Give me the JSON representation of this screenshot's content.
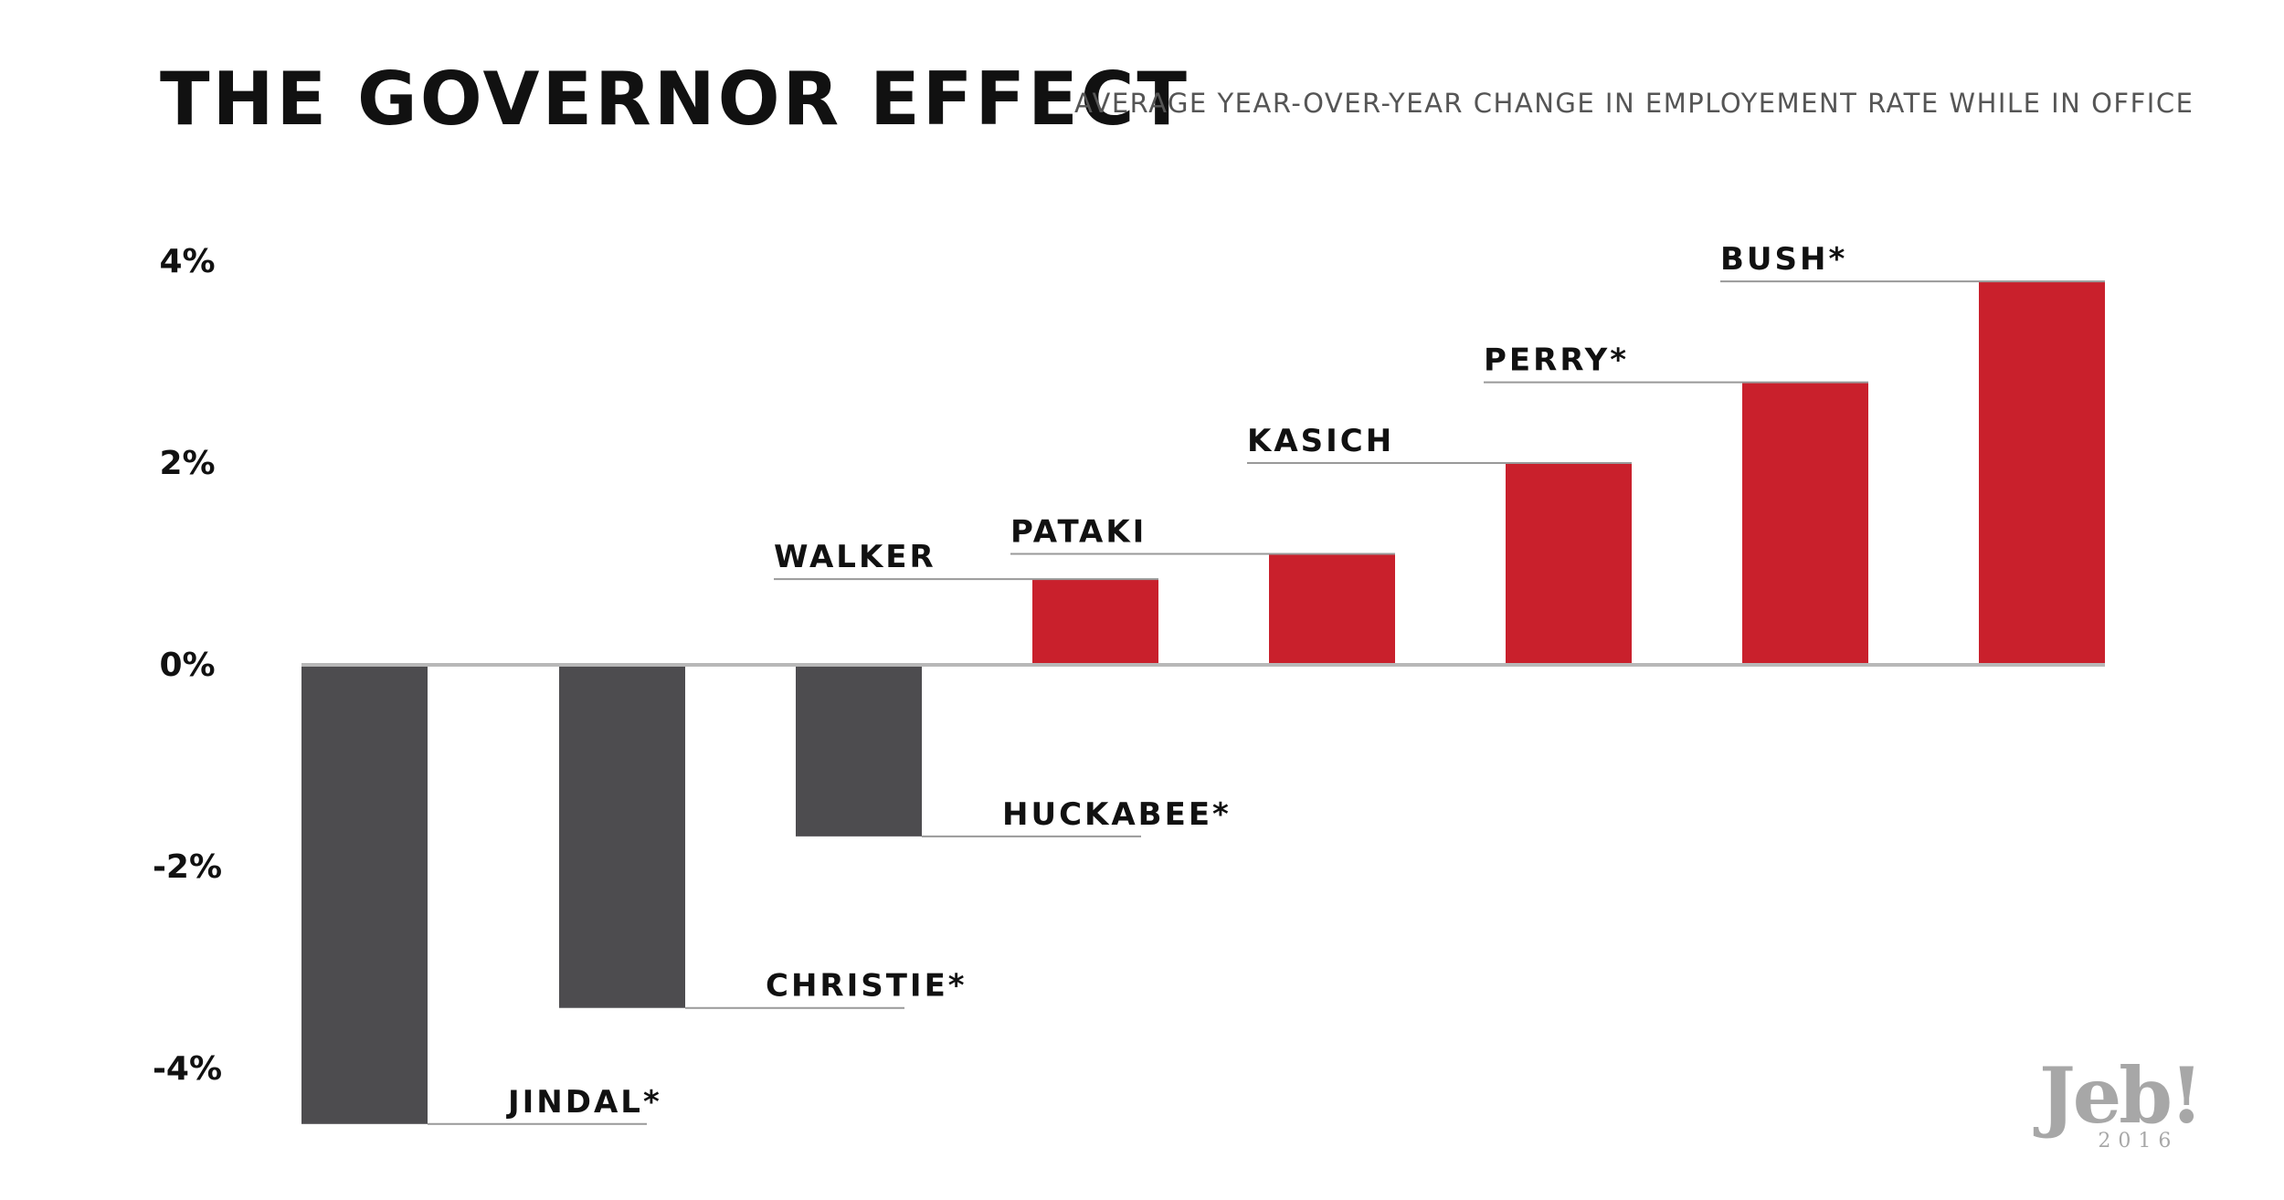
{
  "title": "THE GOVERNOR EFFECT",
  "subtitle": "AVERAGE YEAR-OVER-YEAR CHANGE IN EMPLOYEMENT RATE WHILE IN OFFICE",
  "logo": {
    "name": "Jeb!",
    "year": "2016"
  },
  "colors": {
    "negative": "#4d4c4f",
    "positive": "#c9202c",
    "axis": "#b8b8b8",
    "label_rule": "#999999",
    "text": "#111111"
  },
  "chart_data": {
    "type": "bar",
    "title": "THE GOVERNOR EFFECT",
    "subtitle": "AVERAGE YEAR-OVER-YEAR CHANGE IN EMPLOYEMENT RATE WHILE IN OFFICE",
    "categories": [
      "JINDAL*",
      "CHRISTIE*",
      "HUCKABEE*",
      "WALKER",
      "PATAKI",
      "KASICH",
      "PERRY*",
      "BUSH*"
    ],
    "values": [
      -4.55,
      -3.4,
      -1.7,
      0.85,
      1.1,
      2.0,
      2.8,
      3.8
    ],
    "y_ticks": [
      "4%",
      "2%",
      "0%",
      "-2%",
      "-4%"
    ],
    "y_tick_values": [
      4,
      2,
      0,
      -2,
      -4
    ],
    "ylim": [
      -4.7,
      4.3
    ],
    "grid": false,
    "legend": "none"
  }
}
